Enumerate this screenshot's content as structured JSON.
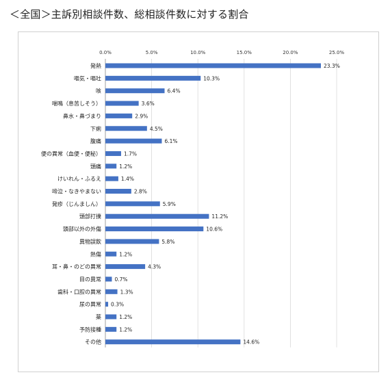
{
  "title": "＜全国＞主訴別相談件数、総相談件数に対する割合",
  "chart_data": {
    "type": "bar",
    "orientation": "horizontal",
    "title": "",
    "xlabel": "",
    "ylabel": "",
    "xlim": [
      0,
      25
    ],
    "ticks": [
      "0.0%",
      "5.0%",
      "10.0%",
      "15.0%",
      "20.0%",
      "25.0%"
    ],
    "tick_values": [
      0,
      5,
      10,
      15,
      20,
      25
    ],
    "grid": true,
    "bar_color": "#4472c4",
    "categories": [
      "発熱",
      "嘔気・嘔吐",
      "咳",
      "喘鳴（息苦しそう）",
      "鼻水・鼻づまり",
      "下痢",
      "腹痛",
      "便の異常（血便・便秘）",
      "頭痛",
      "けいれん・ふるえ",
      "啼泣・なきやまない",
      "発疹（じんましん）",
      "頭部打撲",
      "頭部以外の外傷",
      "異物誤飲",
      "熱傷",
      "耳・鼻・のどの異常",
      "目の異常",
      "歯科・口腔の異常",
      "尿の異常",
      "薬",
      "予防接種",
      "その他"
    ],
    "values": [
      23.3,
      10.3,
      6.4,
      3.6,
      2.9,
      4.5,
      6.1,
      1.7,
      1.2,
      1.4,
      2.8,
      5.9,
      11.2,
      10.6,
      5.8,
      1.2,
      4.3,
      0.7,
      1.3,
      0.3,
      1.2,
      1.2,
      14.6
    ],
    "labels": [
      "23.3%",
      "10.3%",
      "6.4%",
      "3.6%",
      "2.9%",
      "4.5%",
      "6.1%",
      "1.7%",
      "1.2%",
      "1.4%",
      "2.8%",
      "5.9%",
      "11.2%",
      "10.6%",
      "5.8%",
      "1.2%",
      "4.3%",
      "0.7%",
      "1.3%",
      "0.3%",
      "1.2%",
      "1.2%",
      "14.6%"
    ]
  }
}
